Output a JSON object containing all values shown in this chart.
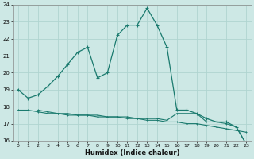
{
  "title": "",
  "xlabel": "Humidex (Indice chaleur)",
  "bg_color": "#cde8e5",
  "grid_color": "#b0d4d0",
  "line_color": "#1a7a6e",
  "xlim": [
    -0.5,
    23.5
  ],
  "ylim": [
    16,
    24
  ],
  "yticks": [
    16,
    17,
    18,
    19,
    20,
    21,
    22,
    23,
    24
  ],
  "xticks": [
    0,
    1,
    2,
    3,
    4,
    5,
    6,
    7,
    8,
    9,
    10,
    11,
    12,
    13,
    14,
    15,
    16,
    17,
    18,
    19,
    20,
    21,
    22,
    23
  ],
  "line1_x": [
    0,
    1,
    2,
    3,
    4,
    5,
    6,
    7,
    8,
    9,
    10,
    11,
    12,
    13,
    14,
    15,
    16,
    17,
    18,
    19,
    20,
    21,
    22,
    23
  ],
  "line1_y": [
    19.0,
    18.5,
    18.7,
    19.2,
    19.8,
    20.5,
    21.2,
    21.5,
    19.7,
    20.0,
    22.2,
    22.8,
    22.8,
    23.8,
    22.8,
    21.5,
    17.8,
    17.8,
    17.6,
    17.3,
    17.1,
    17.1,
    16.8,
    15.8
  ],
  "line2_x": [
    0,
    1,
    2,
    3,
    4,
    5,
    6,
    7,
    8,
    9,
    10,
    11,
    12,
    13,
    14,
    15,
    16,
    17,
    18,
    19,
    20,
    21,
    22,
    23
  ],
  "line2_y": [
    17.8,
    17.8,
    17.7,
    17.6,
    17.6,
    17.5,
    17.5,
    17.5,
    17.4,
    17.4,
    17.4,
    17.3,
    17.3,
    17.2,
    17.2,
    17.1,
    17.1,
    17.0,
    17.0,
    16.9,
    16.8,
    16.7,
    16.6,
    16.5
  ],
  "line3_x": [
    2,
    3,
    4,
    5,
    6,
    7,
    8,
    9,
    10,
    11,
    12,
    13,
    14,
    15,
    16,
    17,
    18,
    19,
    20,
    21,
    22,
    23
  ],
  "line3_y": [
    17.8,
    17.7,
    17.6,
    17.6,
    17.5,
    17.5,
    17.5,
    17.4,
    17.4,
    17.4,
    17.3,
    17.3,
    17.3,
    17.2,
    17.6,
    17.6,
    17.6,
    17.1,
    17.1,
    17.0,
    16.8,
    15.8
  ]
}
